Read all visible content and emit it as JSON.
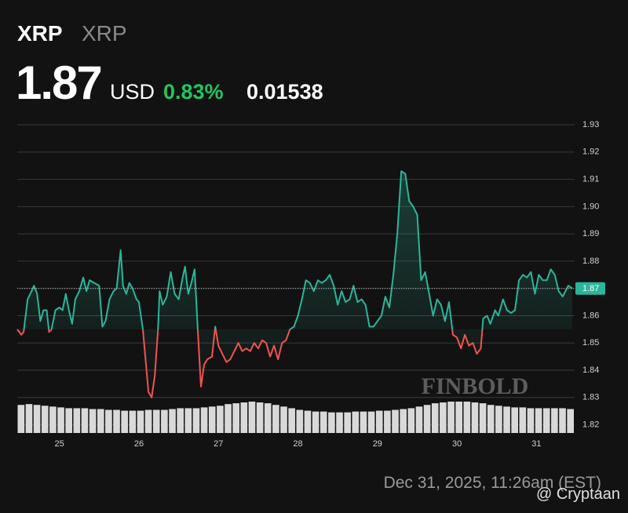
{
  "header": {
    "symbol": "XRP",
    "name": "XRP",
    "currency": "USD",
    "change_pct": "0.83%",
    "change": "0.01538",
    "watermark": "FINBOLD",
    "timestamp": "Dec 31, 2025, 11:26am (EST)",
    "credit": "@ Cryptaan"
  },
  "chart_data": {
    "type": "line",
    "last_price": 1.87,
    "color": "#2bb59a",
    "down_color": "#ef5350",
    "baseline": 1.855,
    "grid": true,
    "xlim": [
      24.47,
      31.48
    ],
    "xticks": [
      25,
      26,
      27,
      28,
      29,
      30,
      31
    ],
    "ylim": [
      1.817,
      1.9326
    ],
    "yticks": [
      1.82,
      1.83,
      1.84,
      1.85,
      1.86,
      1.87,
      1.88,
      1.89,
      {
        "value": 1.9,
        "label": "1.90"
      },
      1.91,
      1.92,
      1.93
    ],
    "x": [
      24.47,
      24.52,
      24.55,
      24.6,
      24.65,
      24.68,
      24.72,
      24.76,
      24.8,
      24.84,
      24.87,
      24.9,
      24.95,
      25.0,
      25.04,
      25.08,
      25.12,
      25.16,
      25.2,
      25.25,
      25.3,
      25.34,
      25.38,
      25.44,
      25.5,
      25.54,
      25.58,
      25.63,
      25.68,
      25.72,
      25.77,
      25.8,
      25.84,
      25.88,
      25.92,
      25.97,
      26.0,
      26.05,
      26.08,
      26.12,
      26.16,
      26.2,
      26.24,
      26.26,
      26.3,
      26.35,
      26.4,
      26.45,
      26.5,
      26.55,
      26.58,
      26.62,
      26.66,
      26.7,
      26.74,
      26.78,
      26.82,
      26.86,
      26.92,
      26.96,
      27.0,
      27.05,
      27.1,
      27.15,
      27.2,
      27.25,
      27.3,
      27.35,
      27.4,
      27.45,
      27.5,
      27.55,
      27.6,
      27.65,
      27.7,
      27.75,
      27.8,
      27.85,
      27.9,
      27.95,
      28.0,
      28.05,
      28.1,
      28.15,
      28.2,
      28.25,
      28.3,
      28.35,
      28.4,
      28.45,
      28.5,
      28.55,
      28.6,
      28.65,
      28.7,
      28.75,
      28.8,
      28.85,
      28.9,
      28.95,
      29.0,
      29.05,
      29.1,
      29.15,
      29.2,
      29.25,
      29.3,
      29.35,
      29.4,
      29.45,
      29.5,
      29.55,
      29.6,
      29.65,
      29.7,
      29.75,
      29.8,
      29.85,
      29.9,
      29.95,
      30.0,
      30.05,
      30.1,
      30.15,
      30.2,
      30.25,
      30.3,
      30.33,
      30.38,
      30.42,
      30.48,
      30.52,
      30.58,
      30.63,
      30.68,
      30.73,
      30.78,
      30.83,
      30.88,
      30.93,
      30.98,
      31.03,
      31.08,
      31.13,
      31.18,
      31.23,
      31.28,
      31.33,
      31.4,
      31.45
    ],
    "values": [
      1.855,
      1.853,
      1.854,
      1.866,
      1.869,
      1.871,
      1.868,
      1.858,
      1.862,
      1.862,
      1.854,
      1.855,
      1.862,
      1.863,
      1.862,
      1.868,
      1.862,
      1.857,
      1.866,
      1.869,
      1.874,
      1.869,
      1.873,
      1.872,
      1.871,
      1.856,
      1.858,
      1.866,
      1.869,
      1.87,
      1.884,
      1.871,
      1.868,
      1.872,
      1.87,
      1.866,
      1.865,
      1.855,
      1.845,
      1.832,
      1.83,
      1.838,
      1.855,
      1.869,
      1.864,
      1.867,
      1.876,
      1.868,
      1.866,
      1.874,
      1.878,
      1.868,
      1.872,
      1.877,
      1.855,
      1.834,
      1.842,
      1.844,
      1.845,
      1.856,
      1.849,
      1.846,
      1.843,
      1.844,
      1.847,
      1.85,
      1.847,
      1.848,
      1.847,
      1.85,
      1.848,
      1.851,
      1.85,
      1.845,
      1.849,
      1.844,
      1.85,
      1.851,
      1.855,
      1.856,
      1.86,
      1.866,
      1.873,
      1.872,
      1.869,
      1.873,
      1.872,
      1.873,
      1.875,
      1.871,
      1.864,
      1.869,
      1.865,
      1.866,
      1.871,
      1.865,
      1.866,
      1.864,
      1.856,
      1.856,
      1.858,
      1.86,
      1.867,
      1.863,
      1.875,
      1.89,
      1.913,
      1.912,
      1.902,
      1.9,
      1.897,
      1.873,
      1.876,
      1.868,
      1.86,
      1.866,
      1.864,
      1.858,
      1.865,
      1.853,
      1.852,
      1.848,
      1.853,
      1.849,
      1.85,
      1.846,
      1.848,
      1.859,
      1.86,
      1.857,
      1.862,
      1.86,
      1.866,
      1.862,
      1.861,
      1.862,
      1.873,
      1.875,
      1.874,
      1.876,
      1.868,
      1.875,
      1.873,
      1.873,
      1.877,
      1.875,
      1.869,
      1.867,
      1.871,
      1.87
    ],
    "volume": {
      "color": "#d9d9d9",
      "values": [
        34,
        35,
        34,
        33,
        32,
        31,
        30,
        30,
        30,
        29,
        29,
        28,
        28,
        27,
        27,
        27,
        28,
        28,
        28,
        29,
        30,
        30,
        30,
        31,
        32,
        33,
        35,
        36,
        37,
        38,
        37,
        36,
        34,
        32,
        30,
        28,
        27,
        26,
        26,
        25,
        25,
        25,
        26,
        26,
        26,
        27,
        27,
        28,
        29,
        30,
        32,
        34,
        36,
        37,
        38,
        38,
        38,
        37,
        36,
        34,
        33,
        32,
        31,
        31,
        30,
        30,
        30,
        30,
        30,
        29
      ]
    }
  }
}
